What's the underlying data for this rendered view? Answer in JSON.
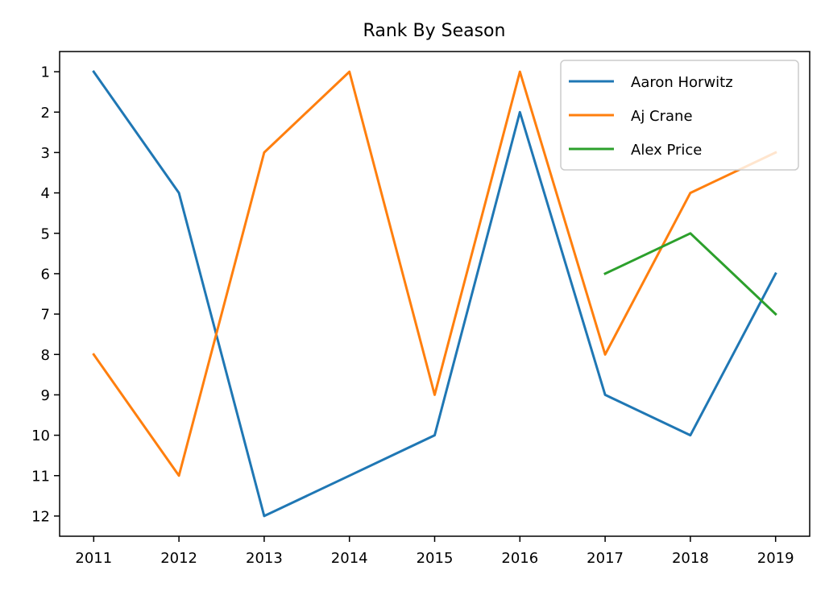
{
  "chart_data": {
    "type": "line",
    "title": "Rank By Season",
    "xlabel": "",
    "ylabel": "",
    "x": [
      2011,
      2012,
      2013,
      2014,
      2015,
      2016,
      2017,
      2018,
      2019
    ],
    "xlim": [
      2010.6,
      2019.4
    ],
    "ylim": [
      12.5,
      0.5
    ],
    "y_inverted": true,
    "x_ticks": [
      "2011",
      "2012",
      "2013",
      "2014",
      "2015",
      "2016",
      "2017",
      "2018",
      "2019"
    ],
    "y_ticks": [
      "1",
      "2",
      "3",
      "4",
      "5",
      "6",
      "7",
      "8",
      "9",
      "10",
      "11",
      "12"
    ],
    "grid": false,
    "legend_position": "top-right",
    "series": [
      {
        "name": "Aaron Horwitz",
        "color": "#1f77b4",
        "x": [
          2011,
          2012,
          2013,
          2014,
          2015,
          2016,
          2017,
          2018,
          2019
        ],
        "values": [
          1,
          4,
          12,
          11,
          10,
          2,
          9,
          10,
          6
        ]
      },
      {
        "name": "Aj Crane",
        "color": "#ff7f0e",
        "x": [
          2011,
          2012,
          2013,
          2014,
          2015,
          2016,
          2017,
          2018,
          2019
        ],
        "values": [
          8,
          11,
          3,
          1,
          9,
          1,
          8,
          4,
          3
        ]
      },
      {
        "name": "Alex Price",
        "color": "#2ca02c",
        "x": [
          2017,
          2018,
          2019
        ],
        "values": [
          6,
          5,
          7
        ]
      }
    ]
  }
}
